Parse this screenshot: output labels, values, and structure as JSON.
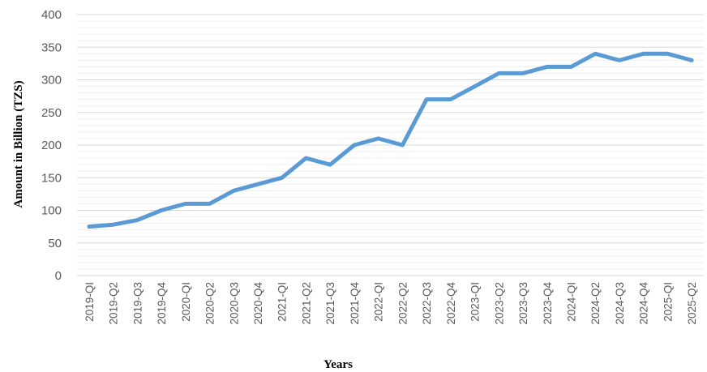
{
  "chart_data": {
    "type": "line",
    "title": "",
    "xlabel": "Years",
    "ylabel": "Amount in Billion (TZS)",
    "ylim": [
      0,
      400
    ],
    "yticks": [
      0,
      50,
      100,
      150,
      200,
      250,
      300,
      350,
      400
    ],
    "grid": true,
    "legend": "none",
    "categories": [
      "2019-QI",
      "2019-Q2",
      "2019-Q3",
      "2019-Q4",
      "2020-QI",
      "2020-Q2",
      "2020-Q3",
      "2020-Q4",
      "2021-QI",
      "2021-Q2",
      "2021-Q3",
      "2021-Q4",
      "2022-QI",
      "2022-Q2",
      "2022-Q3",
      "2022-Q4",
      "2023-QI",
      "2023-Q2",
      "2023-Q3",
      "2023-Q4",
      "2024-QI",
      "2024-Q2",
      "2024-Q3",
      "2024-Q4",
      "2025-QI",
      "2025-Q2"
    ],
    "series": [
      {
        "values": [
          75,
          78,
          85,
          100,
          110,
          110,
          130,
          140,
          150,
          180,
          170,
          200,
          210,
          200,
          270,
          270,
          290,
          310,
          310,
          320,
          320,
          340,
          330,
          340,
          340,
          330
        ],
        "color": "#5b9bd5"
      }
    ]
  }
}
